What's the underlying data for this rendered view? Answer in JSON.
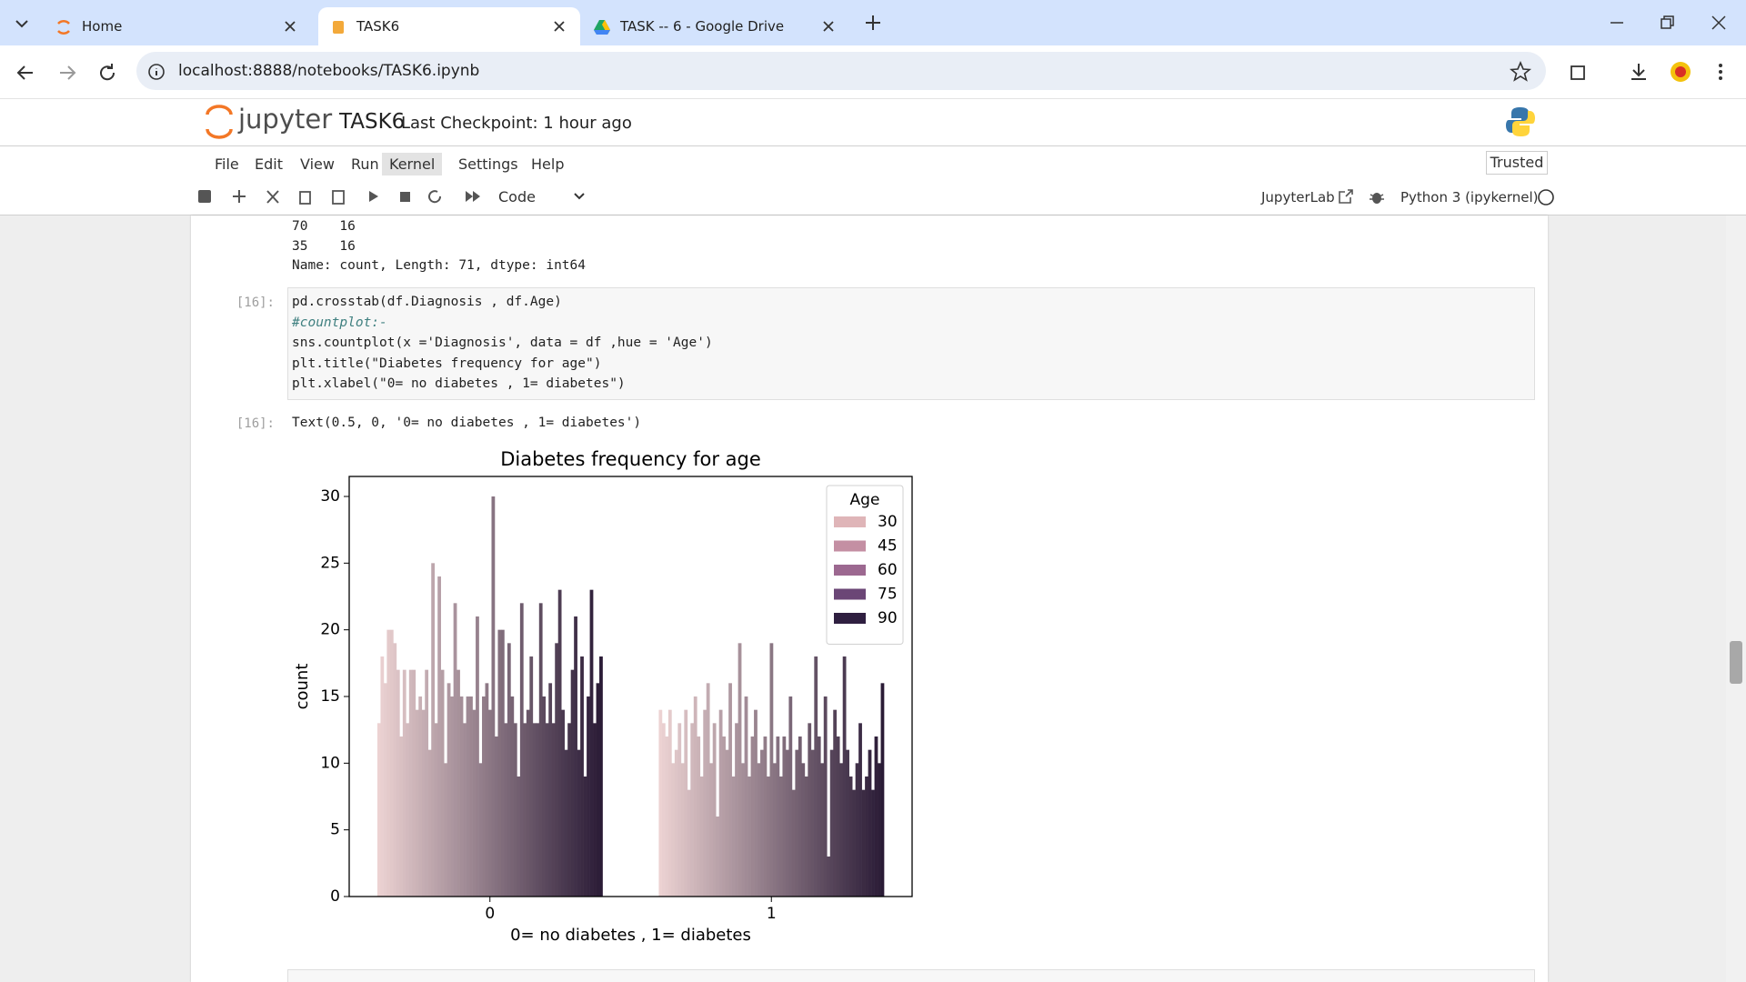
{
  "browser": {
    "tabs": [
      "Home",
      "TASK6",
      "TASK -- 6 - Google Drive"
    ],
    "url": "localhost:8888/notebooks/TASK6.ipynb"
  },
  "header": {
    "logo": "jupyter",
    "notebook": "TASK6",
    "checkpoint": "Last Checkpoint: 1 hour ago",
    "trusted": "Trusted"
  },
  "menu": [
    "File",
    "Edit",
    "View",
    "Run",
    "Kernel",
    "Settings",
    "Help"
  ],
  "toolbar": {
    "cell_type": "Code",
    "jupyterlab": "JupyterLab",
    "kernel": "Python 3 (ipykernel)"
  },
  "output_above": [
    "70    16",
    "35    16",
    "Name: count, Length: 71, dtype: int64"
  ],
  "cell": {
    "prompt": "[16]:",
    "code": [
      "pd.crosstab(df.Diagnosis , df.Age)",
      "#countplot:-",
      "sns.countplot(x ='Diagnosis', data = df ,hue = 'Age')",
      "plt.title(\"Diabetes frequency for age\")",
      "plt.xlabel(\"0= no diabetes , 1= diabetes\")"
    ],
    "out_prompt": "[16]:",
    "out_text": "Text(0.5, 0, '0= no diabetes , 1= diabetes')"
  },
  "chart_data": {
    "type": "grouped_bar",
    "title": "Diabetes frequency for age",
    "xlabel": "0= no diabetes , 1= diabetes",
    "ylabel": "count",
    "categories": [
      "0",
      "1"
    ],
    "values": [
      [
        13,
        18,
        16,
        20,
        20,
        19,
        17,
        12,
        17,
        13,
        17,
        17,
        14,
        15,
        14,
        17,
        11,
        25,
        13,
        24,
        17,
        10,
        16,
        15,
        22,
        17,
        15,
        13,
        15,
        15,
        14,
        21,
        10,
        15,
        16,
        14,
        30,
        12,
        20,
        20,
        13,
        19,
        15,
        13,
        9,
        22,
        13,
        14,
        18,
        13,
        13,
        22,
        15,
        13,
        16,
        13,
        19,
        23,
        14,
        11,
        13,
        17,
        21,
        11,
        18,
        9,
        15,
        23,
        13,
        16,
        18
      ],
      [
        14,
        13,
        12,
        14,
        10,
        11,
        13,
        10,
        14,
        8,
        13,
        15,
        12,
        9,
        14,
        16,
        10,
        13,
        6,
        14,
        12,
        11,
        16,
        9,
        13,
        19,
        10,
        15,
        9,
        12,
        14,
        10,
        11,
        12,
        9,
        19,
        10,
        12,
        9,
        12,
        11,
        15,
        8,
        11,
        12,
        10,
        9,
        13,
        11,
        18,
        12,
        10,
        15,
        3,
        11,
        14,
        12,
        10,
        18,
        11,
        9,
        8,
        10,
        13,
        8,
        9,
        11,
        8,
        12,
        10,
        16
      ]
    ],
    "color_start": "#ecd2d2",
    "color_end": "#2a1b36",
    "ylim": [
      0,
      31.5
    ],
    "yticks": [
      0,
      5,
      10,
      15,
      20,
      25,
      30
    ],
    "legend": {
      "title": "Age",
      "position": "upper right",
      "labels": [
        "30",
        "45",
        "60",
        "75",
        "90"
      ],
      "colors": [
        "#dfb5b8",
        "#c48fa3",
        "#9c6890",
        "#6b4676",
        "#2f1f40"
      ]
    }
  }
}
